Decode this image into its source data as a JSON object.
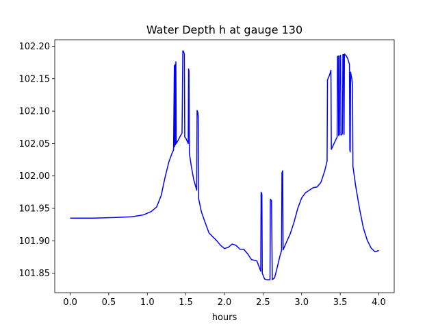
{
  "chart_data": {
    "type": "line",
    "title": "Water Depth h at gauge 130",
    "xlabel": "hours",
    "ylabel": "",
    "xlim": [
      -0.2,
      4.2
    ],
    "ylim": [
      101.82,
      102.21
    ],
    "xticks": [
      0.0,
      0.5,
      1.0,
      1.5,
      2.0,
      2.5,
      3.0,
      3.5,
      4.0
    ],
    "xtick_labels": [
      "0.0",
      "0.5",
      "1.0",
      "1.5",
      "2.0",
      "2.5",
      "3.0",
      "3.5",
      "4.0"
    ],
    "yticks": [
      101.85,
      101.9,
      101.95,
      102.0,
      102.05,
      102.1,
      102.15,
      102.2
    ],
    "ytick_labels": [
      "101.85",
      "101.90",
      "101.95",
      "102.00",
      "102.05",
      "102.10",
      "102.15",
      "102.20"
    ],
    "grid": false,
    "line_color": "#0000ff",
    "series": [
      {
        "points": [
          [
            0.0,
            101.935
          ],
          [
            0.3,
            101.935
          ],
          [
            0.6,
            101.936
          ],
          [
            0.8,
            101.937
          ],
          [
            0.95,
            101.94
          ],
          [
            1.05,
            101.945
          ],
          [
            1.12,
            101.952
          ],
          [
            1.18,
            101.97
          ],
          [
            1.23,
            101.998
          ],
          [
            1.28,
            102.022
          ],
          [
            1.32,
            102.035
          ],
          [
            1.34,
            102.04
          ],
          [
            1.35,
            102.17
          ],
          [
            1.355,
            102.045
          ],
          [
            1.36,
            102.172
          ],
          [
            1.365,
            102.048
          ],
          [
            1.37,
            102.176
          ],
          [
            1.375,
            102.05
          ],
          [
            1.4,
            102.055
          ],
          [
            1.43,
            102.062
          ],
          [
            1.45,
            102.066
          ],
          [
            1.46,
            102.193
          ],
          [
            1.47,
            102.192
          ],
          [
            1.48,
            102.188
          ],
          [
            1.485,
            102.06
          ],
          [
            1.5,
            102.058
          ],
          [
            1.53,
            102.05
          ],
          [
            1.535,
            102.165
          ],
          [
            1.54,
            102.162
          ],
          [
            1.545,
            102.035
          ],
          [
            1.57,
            102.015
          ],
          [
            1.6,
            101.995
          ],
          [
            1.64,
            101.978
          ],
          [
            1.645,
            102.101
          ],
          [
            1.655,
            102.098
          ],
          [
            1.66,
            102.092
          ],
          [
            1.665,
            101.965
          ],
          [
            1.7,
            101.945
          ],
          [
            1.75,
            101.928
          ],
          [
            1.8,
            101.912
          ],
          [
            1.85,
            101.906
          ],
          [
            1.9,
            101.9
          ],
          [
            1.95,
            101.893
          ],
          [
            2.0,
            101.888
          ],
          [
            2.05,
            101.89
          ],
          [
            2.1,
            101.895
          ],
          [
            2.15,
            101.893
          ],
          [
            2.2,
            101.887
          ],
          [
            2.25,
            101.887
          ],
          [
            2.3,
            101.88
          ],
          [
            2.35,
            101.871
          ],
          [
            2.42,
            101.869
          ],
          [
            2.47,
            101.853
          ],
          [
            2.475,
            101.975
          ],
          [
            2.485,
            101.972
          ],
          [
            2.49,
            101.85
          ],
          [
            2.52,
            101.841
          ],
          [
            2.55,
            101.84
          ],
          [
            2.59,
            101.84
          ],
          [
            2.595,
            101.964
          ],
          [
            2.61,
            101.962
          ],
          [
            2.62,
            101.84
          ],
          [
            2.65,
            101.843
          ],
          [
            2.68,
            101.857
          ],
          [
            2.72,
            101.877
          ],
          [
            2.74,
            101.885
          ],
          [
            2.745,
            102.005
          ],
          [
            2.755,
            102.008
          ],
          [
            2.76,
            101.886
          ],
          [
            2.8,
            101.897
          ],
          [
            2.85,
            101.91
          ],
          [
            2.9,
            101.928
          ],
          [
            2.95,
            101.95
          ],
          [
            3.0,
            101.966
          ],
          [
            3.05,
            101.974
          ],
          [
            3.1,
            101.978
          ],
          [
            3.15,
            101.982
          ],
          [
            3.2,
            101.983
          ],
          [
            3.25,
            101.99
          ],
          [
            3.3,
            102.008
          ],
          [
            3.33,
            102.023
          ],
          [
            3.335,
            102.148
          ],
          [
            3.36,
            102.155
          ],
          [
            3.38,
            102.163
          ],
          [
            3.385,
            102.041
          ],
          [
            3.42,
            102.05
          ],
          [
            3.46,
            102.06
          ],
          [
            3.465,
            102.184
          ],
          [
            3.475,
            102.185
          ],
          [
            3.48,
            102.062
          ],
          [
            3.49,
            102.064
          ],
          [
            3.495,
            102.185
          ],
          [
            3.505,
            102.186
          ],
          [
            3.51,
            102.063
          ],
          [
            3.53,
            102.065
          ],
          [
            3.535,
            102.187
          ],
          [
            3.545,
            102.187
          ],
          [
            3.55,
            102.064
          ],
          [
            3.555,
            102.188
          ],
          [
            3.58,
            102.185
          ],
          [
            3.6,
            102.18
          ],
          [
            3.62,
            102.172
          ],
          [
            3.625,
            102.04
          ],
          [
            3.63,
            102.037
          ],
          [
            3.635,
            102.16
          ],
          [
            3.65,
            102.15
          ],
          [
            3.66,
            102.14
          ],
          [
            3.665,
            102.015
          ],
          [
            3.7,
            101.985
          ],
          [
            3.75,
            101.95
          ],
          [
            3.8,
            101.92
          ],
          [
            3.85,
            101.901
          ],
          [
            3.9,
            101.889
          ],
          [
            3.95,
            101.883
          ],
          [
            4.0,
            101.885
          ]
        ]
      }
    ]
  }
}
